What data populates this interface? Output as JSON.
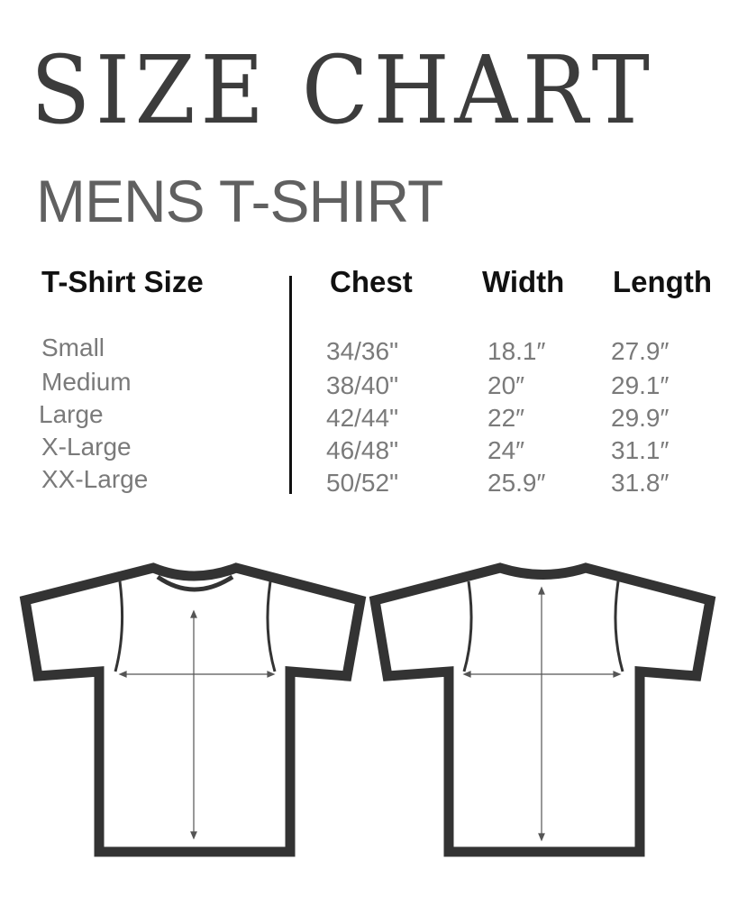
{
  "title": "SIZE CHART",
  "subtitle": "MENS T-SHIRT",
  "table": {
    "headers": [
      "T-Shirt Size",
      "Chest",
      "Width",
      "Length"
    ],
    "rows": [
      [
        "Small",
        "34/36\"",
        "18.1″",
        "27.9″"
      ],
      [
        "Medium",
        "38/40\"",
        "20″",
        "29.1″"
      ],
      [
        "Large",
        "42/44\"",
        "22″",
        "29.9″"
      ],
      [
        "X-Large",
        "46/48\"",
        "24″",
        "31.1″"
      ],
      [
        "XX-Large",
        "50/52\"",
        "25.9″",
        "31.8″"
      ]
    ]
  },
  "illustrations": [
    "tshirt-front-icon",
    "tshirt-back-icon"
  ],
  "colors": {
    "title": "#3c3c3c",
    "subtitle": "#606060",
    "values": "#7a7a7a",
    "outline": "#333333"
  }
}
